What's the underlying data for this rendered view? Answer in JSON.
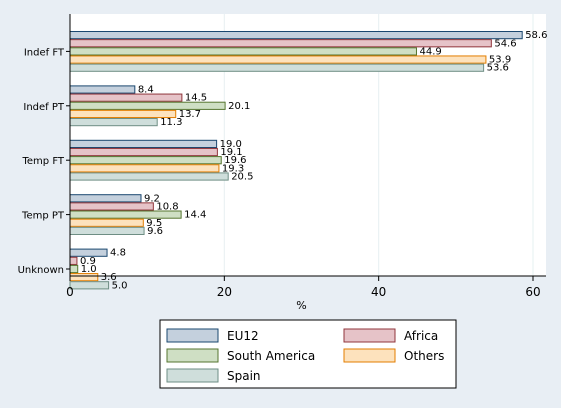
{
  "chart_data": {
    "type": "bar",
    "orientation": "horizontal",
    "categories": [
      "Indef FT",
      "Indef PT",
      "Temp FT",
      "Temp PT",
      "Unknown"
    ],
    "series": [
      {
        "name": "EU12",
        "values": [
          58.6,
          8.4,
          19.0,
          9.2,
          4.8
        ],
        "fill": "#c4d0dd",
        "stroke": "#1a476f"
      },
      {
        "name": "Africa",
        "values": [
          54.6,
          14.5,
          19.1,
          10.8,
          0.9
        ],
        "fill": "#e6c3c8",
        "stroke": "#90353b"
      },
      {
        "name": "South America",
        "values": [
          44.9,
          20.1,
          19.6,
          14.4,
          1.0
        ],
        "fill": "#cfdfc4",
        "stroke": "#55752f"
      },
      {
        "name": "Others",
        "values": [
          53.9,
          13.7,
          19.3,
          9.5,
          3.6
        ],
        "fill": "#fde2bd",
        "stroke": "#e37e00"
      },
      {
        "name": "Spain",
        "values": [
          53.6,
          11.3,
          20.5,
          9.6,
          5.0
        ],
        "fill": "#cfdedb",
        "stroke": "#6e8e84"
      }
    ],
    "value_labels": [
      [
        "58.6",
        "8.4",
        "19.0",
        "9.2",
        "4.8"
      ],
      [
        "54.6",
        "14.5",
        "19.1",
        "10.8",
        "0.9"
      ],
      [
        "44.9",
        "20.1",
        "19.6",
        "14.4",
        "1.0"
      ],
      [
        "53.9",
        "13.7",
        "19.3",
        "9.5",
        "3.6"
      ],
      [
        "53.6",
        "11.3",
        "20.5",
        "9.6",
        "5.0"
      ]
    ],
    "xlabel": "%",
    "xlim": [
      0,
      60
    ],
    "xticks": [
      0,
      20,
      40,
      60
    ],
    "xtick_labels": [
      "0",
      "20",
      "40",
      "60"
    ],
    "grid": true,
    "legend_position": "bottom",
    "legend_columns": 2
  }
}
